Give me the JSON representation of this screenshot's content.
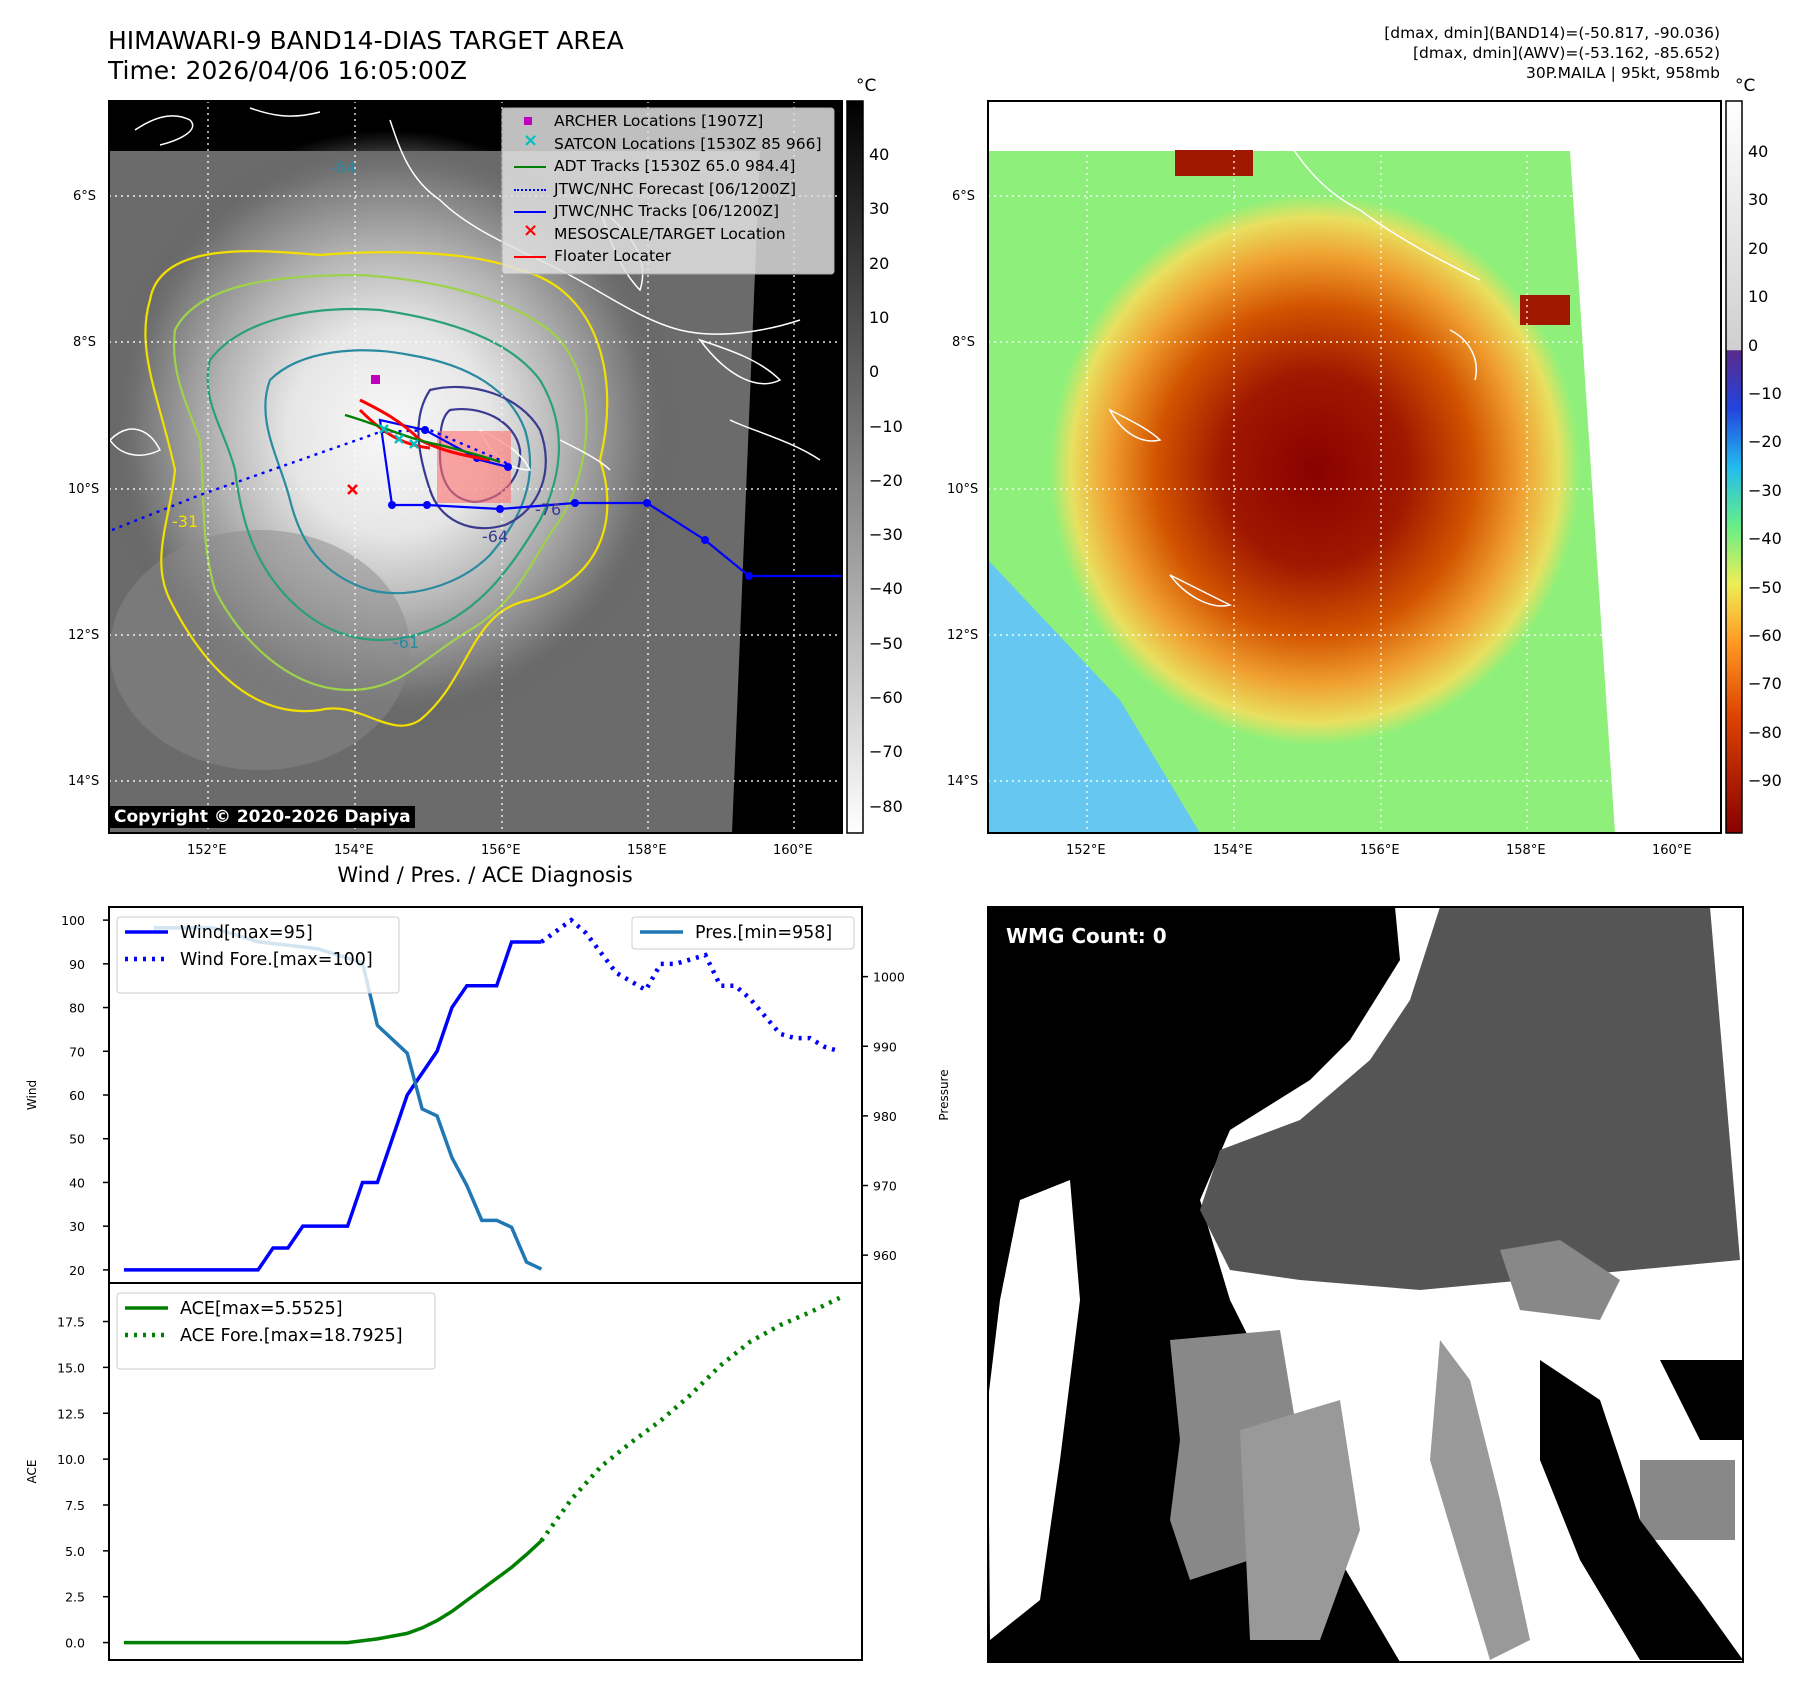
{
  "header": {
    "title_line1": "HIMAWARI-9 BAND14-DIAS TARGET AREA",
    "title_line2": "Time: 2026/04/06 16:05:00Z",
    "info_line1": "[dmax, dmin](BAND14)=(-50.817, -90.036)",
    "info_line2": "[dmax, dmin](AWV)=(-53.162, -85.652)",
    "info_line3": "30P.MAILA | 95kt, 958mb"
  },
  "map_axes": {
    "lat_labels": [
      "6°S",
      "8°S",
      "10°S",
      "12°S",
      "14°S"
    ],
    "lon_labels": [
      "152°E",
      "154°E",
      "156°E",
      "158°E",
      "160°E"
    ]
  },
  "ir_panel": {
    "legend": [
      {
        "label": "ARCHER Locations [1907Z]",
        "color": "#bf00bf",
        "marker": "square"
      },
      {
        "label": "SATCON Locations [1530Z 85 966]",
        "color": "#00bfbf",
        "marker": "x"
      },
      {
        "label": "ADT Tracks [1530Z 65.0 984.4]",
        "color": "#008000",
        "marker": "line"
      },
      {
        "label": "JTWC/NHC Forecast [06/1200Z]",
        "color": "#0000ff",
        "marker": "dotted"
      },
      {
        "label": "JTWC/NHC Tracks [06/1200Z]",
        "color": "#0000ff",
        "marker": "line-dot"
      },
      {
        "label": "MESOSCALE/TARGET Location",
        "color": "#ff0000",
        "marker": "x"
      },
      {
        "label": "Floater Locater",
        "color": "#ff0000",
        "marker": "line"
      }
    ],
    "contour_labels": [
      "-64",
      "-76",
      "-31",
      "-64",
      "-61"
    ],
    "copyright": "Copyright © 2020-2026 Dapiya",
    "colorbar": {
      "unit": "°C",
      "ticks": [
        "40",
        "30",
        "20",
        "10",
        "0",
        "−10",
        "−20",
        "−30",
        "−40",
        "−50",
        "−60",
        "−70",
        "−80"
      ]
    }
  },
  "awv_panel": {
    "colorbar": {
      "unit": "°C",
      "ticks": [
        "40",
        "30",
        "20",
        "10",
        "0",
        "−10",
        "−20",
        "−30",
        "−40",
        "−50",
        "−60",
        "−70",
        "−80",
        "−90"
      ]
    }
  },
  "wmg_panel": {
    "label": "WMG Count: 0"
  },
  "chart_title": "Wind / Pres. / ACE Diagnosis",
  "chart_data": [
    {
      "type": "line",
      "title": "Wind / Pres. / ACE Diagnosis",
      "ylabel": "Wind",
      "y2label": "Pressure",
      "ylim": [
        17,
        103
      ],
      "y2lim": [
        956,
        1010
      ],
      "xlim": [
        -2,
        99
      ],
      "yticks": [
        20,
        30,
        40,
        50,
        60,
        70,
        80,
        90,
        100
      ],
      "y2ticks": [
        960,
        970,
        980,
        990,
        1000
      ],
      "series": [
        {
          "name": "Wind[max=95]",
          "color": "#0000ff",
          "style": "solid",
          "axis": "left",
          "x": [
            0,
            18,
            20,
            22,
            24,
            26,
            28,
            30,
            32,
            34,
            36,
            38,
            40,
            42,
            44,
            46,
            48,
            50,
            52,
            54,
            56
          ],
          "values": [
            20,
            20,
            25,
            25,
            30,
            30,
            30,
            30,
            40,
            40,
            50,
            60,
            65,
            70,
            80,
            85,
            85,
            85,
            95,
            95,
            95
          ]
        },
        {
          "name": "Wind Fore.[max=100]",
          "color": "#0000ff",
          "style": "dotted",
          "axis": "left",
          "x": [
            56,
            60,
            62,
            66,
            70,
            72,
            74,
            78,
            80,
            82,
            84,
            88,
            90,
            92,
            94,
            96
          ],
          "values": [
            95,
            100,
            97,
            88,
            84,
            90,
            90,
            92,
            85,
            85,
            82,
            74,
            73,
            73,
            71,
            70
          ]
        },
        {
          "name": "Pres.[min=958]",
          "color": "#1f77b4",
          "style": "solid",
          "axis": "right",
          "x": [
            4,
            12,
            18,
            26,
            32,
            34,
            38,
            40,
            42,
            44,
            46,
            48,
            50,
            52,
            54,
            56
          ],
          "values": [
            1007,
            1007,
            1005,
            1004,
            1002,
            993,
            989,
            981,
            980,
            974,
            970,
            965,
            965,
            964,
            959,
            958
          ]
        }
      ]
    },
    {
      "type": "line",
      "ylabel": "ACE",
      "ylim": [
        -0.95,
        19.6
      ],
      "xlim": [
        -2,
        99
      ],
      "yticks": [
        0.0,
        2.5,
        5.0,
        7.5,
        10.0,
        12.5,
        15.0,
        17.5
      ],
      "series": [
        {
          "name": "ACE[max=5.5525]",
          "color": "#008000",
          "style": "solid",
          "x": [
            0,
            10,
            20,
            30,
            34,
            38,
            40,
            42,
            44,
            46,
            48,
            50,
            52,
            54,
            56
          ],
          "values": [
            0,
            0,
            0,
            0,
            0.2,
            0.5,
            0.8,
            1.2,
            1.7,
            2.3,
            2.9,
            3.5,
            4.1,
            4.8,
            5.55
          ]
        },
        {
          "name": "ACE Fore.[max=18.7925]",
          "color": "#008000",
          "style": "dotted",
          "x": [
            56,
            60,
            64,
            68,
            72,
            76,
            80,
            84,
            88,
            92,
            96
          ],
          "values": [
            5.55,
            7.8,
            9.6,
            10.9,
            12.1,
            13.5,
            15.1,
            16.4,
            17.3,
            18.0,
            18.79
          ]
        }
      ]
    }
  ]
}
